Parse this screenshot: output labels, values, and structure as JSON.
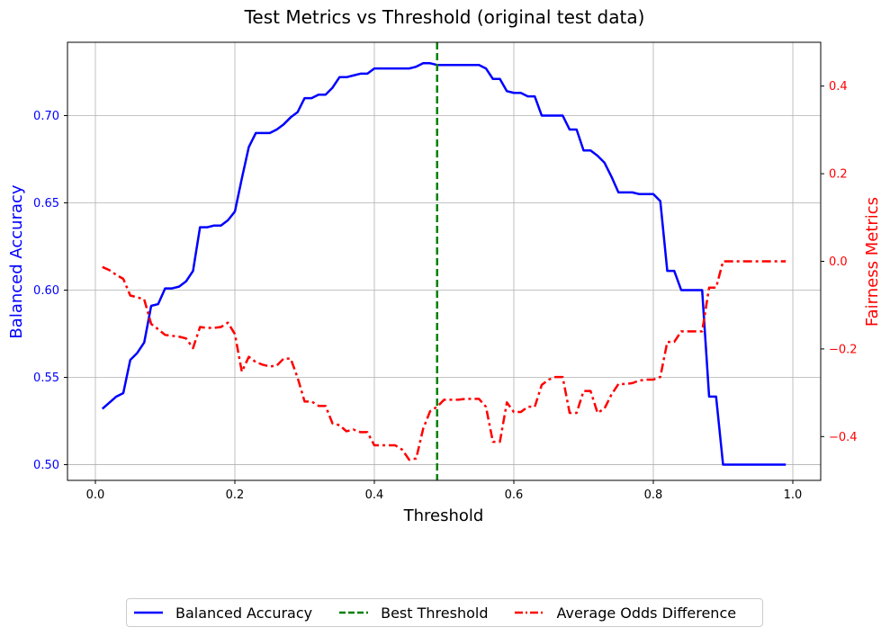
{
  "chart_data": {
    "type": "line",
    "title": "Test Metrics vs Threshold (original test data)",
    "xlabel": "Threshold",
    "ylabel_left": "Balanced Accuracy",
    "ylabel_right": "Fairness Metrics",
    "xlim": [
      -0.04,
      1.04
    ],
    "ylim_left": [
      0.491,
      0.742
    ],
    "ylim_right": [
      -0.5,
      0.5
    ],
    "xticks": [
      0.0,
      0.2,
      0.4,
      0.6,
      0.8,
      1.0
    ],
    "xtick_labels": [
      "0.0",
      "0.2",
      "0.4",
      "0.6",
      "0.8",
      "1.0"
    ],
    "yticks_left": [
      0.5,
      0.55,
      0.6,
      0.65,
      0.7
    ],
    "ytick_labels_left": [
      "0.50",
      "0.55",
      "0.60",
      "0.65",
      "0.70"
    ],
    "yticks_right": [
      -0.4,
      -0.2,
      0.0,
      0.2,
      0.4
    ],
    "ytick_labels_right": [
      "−0.4",
      "−0.2",
      "0.0",
      "0.2",
      "0.4"
    ],
    "grid": true,
    "legend_position": "bottom-center",
    "best_threshold": 0.49,
    "series": [
      {
        "name": "Balanced Accuracy",
        "axis": "left",
        "color": "#0000ff",
        "style": "solid",
        "points": [
          [
            0.01,
            0.532
          ],
          [
            0.03,
            0.539
          ],
          [
            0.04,
            0.541
          ],
          [
            0.05,
            0.56
          ],
          [
            0.06,
            0.564
          ],
          [
            0.07,
            0.57
          ],
          [
            0.08,
            0.591
          ],
          [
            0.09,
            0.592
          ],
          [
            0.1,
            0.601
          ],
          [
            0.11,
            0.601
          ],
          [
            0.12,
            0.602
          ],
          [
            0.13,
            0.605
          ],
          [
            0.14,
            0.611
          ],
          [
            0.15,
            0.636
          ],
          [
            0.16,
            0.636
          ],
          [
            0.17,
            0.637
          ],
          [
            0.18,
            0.637
          ],
          [
            0.19,
            0.64
          ],
          [
            0.2,
            0.645
          ],
          [
            0.21,
            0.664
          ],
          [
            0.22,
            0.682
          ],
          [
            0.23,
            0.69
          ],
          [
            0.24,
            0.69
          ],
          [
            0.25,
            0.69
          ],
          [
            0.26,
            0.692
          ],
          [
            0.27,
            0.695
          ],
          [
            0.28,
            0.699
          ],
          [
            0.29,
            0.702
          ],
          [
            0.3,
            0.71
          ],
          [
            0.31,
            0.71
          ],
          [
            0.32,
            0.712
          ],
          [
            0.33,
            0.712
          ],
          [
            0.34,
            0.716
          ],
          [
            0.35,
            0.722
          ],
          [
            0.36,
            0.722
          ],
          [
            0.37,
            0.723
          ],
          [
            0.38,
            0.724
          ],
          [
            0.39,
            0.724
          ],
          [
            0.4,
            0.727
          ],
          [
            0.41,
            0.727
          ],
          [
            0.42,
            0.727
          ],
          [
            0.43,
            0.727
          ],
          [
            0.44,
            0.727
          ],
          [
            0.45,
            0.727
          ],
          [
            0.46,
            0.728
          ],
          [
            0.47,
            0.73
          ],
          [
            0.48,
            0.73
          ],
          [
            0.49,
            0.729
          ],
          [
            0.5,
            0.729
          ],
          [
            0.51,
            0.729
          ],
          [
            0.52,
            0.729
          ],
          [
            0.53,
            0.729
          ],
          [
            0.54,
            0.729
          ],
          [
            0.55,
            0.729
          ],
          [
            0.56,
            0.727
          ],
          [
            0.57,
            0.721
          ],
          [
            0.58,
            0.721
          ],
          [
            0.59,
            0.714
          ],
          [
            0.6,
            0.713
          ],
          [
            0.61,
            0.713
          ],
          [
            0.62,
            0.711
          ],
          [
            0.63,
            0.711
          ],
          [
            0.64,
            0.7
          ],
          [
            0.65,
            0.7
          ],
          [
            0.66,
            0.7
          ],
          [
            0.67,
            0.7
          ],
          [
            0.68,
            0.692
          ],
          [
            0.69,
            0.692
          ],
          [
            0.7,
            0.68
          ],
          [
            0.71,
            0.68
          ],
          [
            0.72,
            0.677
          ],
          [
            0.73,
            0.673
          ],
          [
            0.74,
            0.665
          ],
          [
            0.75,
            0.656
          ],
          [
            0.76,
            0.656
          ],
          [
            0.77,
            0.656
          ],
          [
            0.78,
            0.655
          ],
          [
            0.79,
            0.655
          ],
          [
            0.8,
            0.655
          ],
          [
            0.81,
            0.651
          ],
          [
            0.82,
            0.611
          ],
          [
            0.83,
            0.611
          ],
          [
            0.84,
            0.6
          ],
          [
            0.85,
            0.6
          ],
          [
            0.86,
            0.6
          ],
          [
            0.87,
            0.6
          ],
          [
            0.88,
            0.539
          ],
          [
            0.89,
            0.539
          ],
          [
            0.9,
            0.5
          ],
          [
            0.91,
            0.5
          ],
          [
            0.95,
            0.5
          ],
          [
            0.99,
            0.5
          ]
        ]
      },
      {
        "name": "Best Threshold",
        "axis": "left",
        "color": "#008000",
        "style": "dashed"
      },
      {
        "name": "Average Odds Difference",
        "axis": "right",
        "color": "#ff0000",
        "style": "dashdot",
        "points": [
          [
            0.01,
            -0.013
          ],
          [
            0.02,
            -0.02
          ],
          [
            0.03,
            -0.031
          ],
          [
            0.04,
            -0.04
          ],
          [
            0.05,
            -0.078
          ],
          [
            0.06,
            -0.082
          ],
          [
            0.07,
            -0.087
          ],
          [
            0.08,
            -0.143
          ],
          [
            0.09,
            -0.155
          ],
          [
            0.1,
            -0.168
          ],
          [
            0.11,
            -0.17
          ],
          [
            0.12,
            -0.172
          ],
          [
            0.13,
            -0.176
          ],
          [
            0.14,
            -0.198
          ],
          [
            0.15,
            -0.15
          ],
          [
            0.16,
            -0.152
          ],
          [
            0.17,
            -0.152
          ],
          [
            0.18,
            -0.15
          ],
          [
            0.19,
            -0.14
          ],
          [
            0.2,
            -0.166
          ],
          [
            0.21,
            -0.252
          ],
          [
            0.22,
            -0.218
          ],
          [
            0.23,
            -0.23
          ],
          [
            0.24,
            -0.236
          ],
          [
            0.25,
            -0.24
          ],
          [
            0.26,
            -0.238
          ],
          [
            0.27,
            -0.222
          ],
          [
            0.28,
            -0.222
          ],
          [
            0.29,
            -0.266
          ],
          [
            0.3,
            -0.32
          ],
          [
            0.31,
            -0.32
          ],
          [
            0.32,
            -0.33
          ],
          [
            0.33,
            -0.33
          ],
          [
            0.34,
            -0.37
          ],
          [
            0.35,
            -0.374
          ],
          [
            0.36,
            -0.388
          ],
          [
            0.37,
            -0.384
          ],
          [
            0.38,
            -0.39
          ],
          [
            0.39,
            -0.39
          ],
          [
            0.4,
            -0.42
          ],
          [
            0.41,
            -0.42
          ],
          [
            0.42,
            -0.42
          ],
          [
            0.43,
            -0.42
          ],
          [
            0.44,
            -0.43
          ],
          [
            0.45,
            -0.453
          ],
          [
            0.46,
            -0.45
          ],
          [
            0.47,
            -0.382
          ],
          [
            0.48,
            -0.342
          ],
          [
            0.49,
            -0.332
          ],
          [
            0.5,
            -0.316
          ],
          [
            0.51,
            -0.316
          ],
          [
            0.52,
            -0.316
          ],
          [
            0.53,
            -0.314
          ],
          [
            0.54,
            -0.314
          ],
          [
            0.55,
            -0.314
          ],
          [
            0.56,
            -0.332
          ],
          [
            0.57,
            -0.412
          ],
          [
            0.58,
            -0.412
          ],
          [
            0.59,
            -0.322
          ],
          [
            0.6,
            -0.344
          ],
          [
            0.61,
            -0.344
          ],
          [
            0.62,
            -0.332
          ],
          [
            0.63,
            -0.332
          ],
          [
            0.64,
            -0.282
          ],
          [
            0.65,
            -0.27
          ],
          [
            0.66,
            -0.264
          ],
          [
            0.67,
            -0.264
          ],
          [
            0.68,
            -0.346
          ],
          [
            0.69,
            -0.346
          ],
          [
            0.7,
            -0.296
          ],
          [
            0.71,
            -0.296
          ],
          [
            0.72,
            -0.346
          ],
          [
            0.73,
            -0.336
          ],
          [
            0.74,
            -0.304
          ],
          [
            0.75,
            -0.28
          ],
          [
            0.76,
            -0.28
          ],
          [
            0.77,
            -0.278
          ],
          [
            0.78,
            -0.272
          ],
          [
            0.79,
            -0.27
          ],
          [
            0.8,
            -0.27
          ],
          [
            0.81,
            -0.264
          ],
          [
            0.82,
            -0.184
          ],
          [
            0.83,
            -0.184
          ],
          [
            0.84,
            -0.16
          ],
          [
            0.85,
            -0.16
          ],
          [
            0.86,
            -0.16
          ],
          [
            0.87,
            -0.16
          ],
          [
            0.88,
            -0.06
          ],
          [
            0.89,
            -0.06
          ],
          [
            0.9,
            0.0
          ],
          [
            0.91,
            0.0
          ],
          [
            0.95,
            0.0
          ],
          [
            0.99,
            0.0
          ]
        ]
      }
    ]
  },
  "legend": {
    "items": [
      {
        "label": "Balanced Accuracy",
        "color": "#0000ff",
        "style": "solid"
      },
      {
        "label": "Best Threshold",
        "color": "#008000",
        "style": "dashed"
      },
      {
        "label": "Average Odds Difference",
        "color": "#ff0000",
        "style": "dashdot"
      }
    ]
  }
}
